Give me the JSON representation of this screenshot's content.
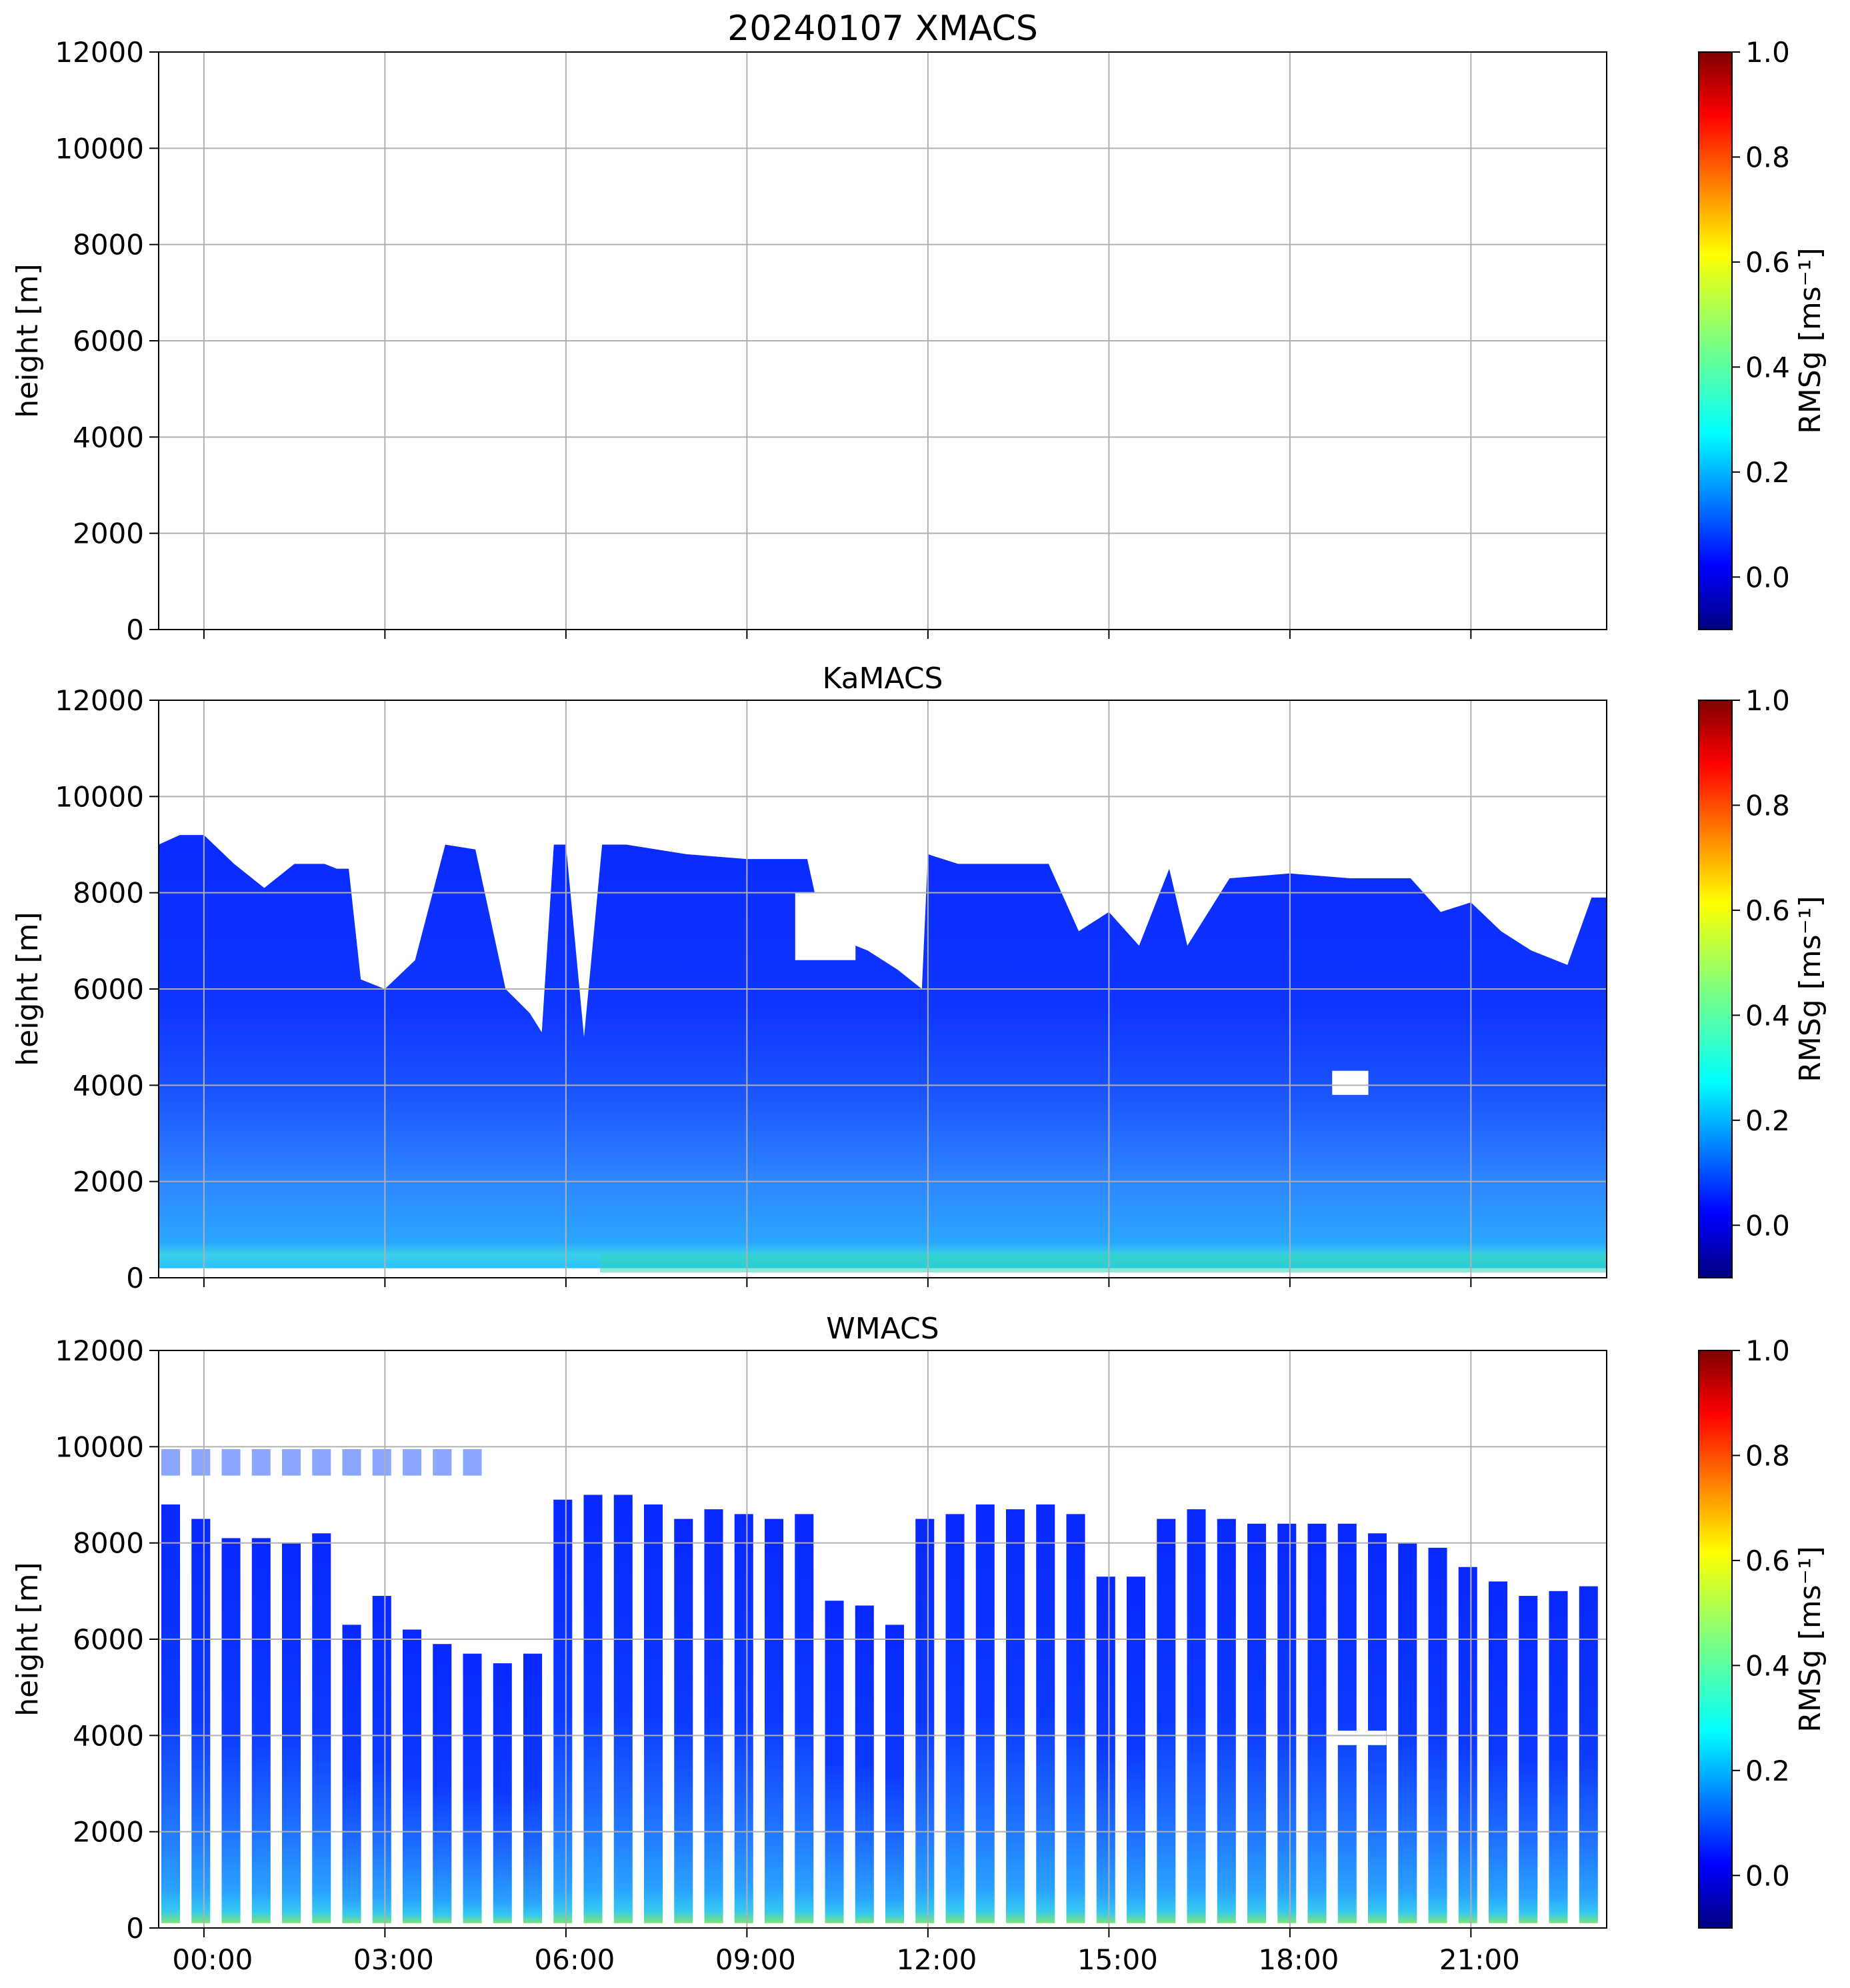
{
  "chart_data": [
    {
      "type": "heatmap",
      "title": "20240107 XMACS",
      "xlabel": "",
      "ylabel": "height [m]",
      "ylim": [
        0,
        12000
      ],
      "xlim_hours": [
        -0.75,
        23.25
      ],
      "x_tick_labels": [
        "00:00",
        "03:00",
        "06:00",
        "09:00",
        "12:00",
        "15:00",
        "18:00",
        "21:00"
      ],
      "y_ticks": [
        0,
        2000,
        4000,
        6000,
        8000,
        10000,
        12000
      ],
      "grid": true,
      "colorbar": {
        "label": "RMSg [ms⁻¹]",
        "range": [
          -0.1,
          1.0
        ],
        "ticks": [
          "0.0",
          "0.2",
          "0.4",
          "0.6",
          "0.8",
          "1.0"
        ],
        "colormap": "jet"
      },
      "has_data": false
    },
    {
      "type": "heatmap",
      "title": "KaMACS",
      "xlabel": "",
      "ylabel": "height [m]",
      "ylim": [
        0,
        12000
      ],
      "xlim_hours": [
        -0.75,
        23.25
      ],
      "x_tick_labels": [
        "00:00",
        "03:00",
        "06:00",
        "09:00",
        "12:00",
        "15:00",
        "18:00",
        "21:00"
      ],
      "y_ticks": [
        0,
        2000,
        4000,
        6000,
        8000,
        10000,
        12000
      ],
      "grid": true,
      "colorbar": {
        "label": "RMSg [ms⁻¹]",
        "range": [
          -0.1,
          1.0
        ],
        "ticks": [
          "0.0",
          "0.2",
          "0.4",
          "0.6",
          "0.8",
          "1.0"
        ],
        "colormap": "jet"
      },
      "has_data": true,
      "data_bottom_m": 200,
      "cloud_top": {
        "hours": [
          -0.75,
          -0.4,
          0.0,
          0.5,
          1.0,
          1.5,
          2.0,
          2.2,
          2.4,
          2.6,
          3.0,
          3.5,
          4.0,
          4.5,
          5.0,
          5.4,
          5.6,
          5.8,
          6.0,
          6.3,
          6.6,
          7.0,
          8.0,
          9.0,
          10.0,
          10.3,
          10.6,
          11.0,
          11.5,
          11.9,
          12.0,
          12.5,
          13.0,
          14.0,
          14.5,
          15.0,
          15.5,
          16.0,
          16.3,
          17.0,
          18.0,
          19.0,
          20.0,
          20.5,
          21.0,
          21.5,
          22.0,
          22.6,
          23.0,
          23.25
        ],
        "top_m": [
          9000,
          9200,
          9200,
          8600,
          8100,
          8600,
          8600,
          8500,
          8500,
          6200,
          6000,
          6600,
          9000,
          8900,
          6000,
          5500,
          5100,
          9000,
          9000,
          5000,
          9000,
          9000,
          8800,
          8700,
          8700,
          7000,
          7000,
          6800,
          6400,
          6000,
          8800,
          8600,
          8600,
          8600,
          7200,
          7600,
          6900,
          8500,
          6900,
          8300,
          8400,
          8300,
          8300,
          7600,
          7800,
          7200,
          6800,
          6500,
          7900,
          7900
        ]
      },
      "gaps": [
        {
          "hour_start": 9.8,
          "hour_end": 10.8,
          "bottom_m": 6600,
          "top_m": 8000
        },
        {
          "hour_start": 18.7,
          "hour_end": 19.3,
          "bottom_m": 3800,
          "top_m": 4300
        }
      ]
    },
    {
      "type": "heatmap",
      "title": "WMACS",
      "xlabel": "",
      "ylabel": "height [m]",
      "ylim": [
        0,
        12000
      ],
      "xlim_hours": [
        -0.75,
        23.25
      ],
      "x_tick_labels": [
        "00:00",
        "03:00",
        "06:00",
        "09:00",
        "12:00",
        "15:00",
        "18:00",
        "21:00"
      ],
      "y_ticks": [
        0,
        2000,
        4000,
        6000,
        8000,
        10000,
        12000
      ],
      "grid": true,
      "colorbar": {
        "label": "RMSg [ms⁻¹]",
        "range": [
          -0.1,
          1.0
        ],
        "ticks": [
          "0.0",
          "0.2",
          "0.4",
          "0.6",
          "0.8",
          "1.0"
        ],
        "colormap": "jet"
      },
      "has_data": true,
      "data_bottom_m": 100,
      "stripes": [
        {
          "hour": -0.75,
          "top_m": 8800
        },
        {
          "hour": -0.25,
          "top_m": 8500
        },
        {
          "hour": 0.25,
          "top_m": 8100
        },
        {
          "hour": 0.75,
          "top_m": 8100
        },
        {
          "hour": 1.25,
          "top_m": 8000
        },
        {
          "hour": 1.75,
          "top_m": 8200
        },
        {
          "hour": 2.25,
          "top_m": 6300
        },
        {
          "hour": 2.75,
          "top_m": 6900
        },
        {
          "hour": 3.25,
          "top_m": 6200
        },
        {
          "hour": 3.75,
          "top_m": 5900
        },
        {
          "hour": 4.25,
          "top_m": 5700
        },
        {
          "hour": 4.75,
          "top_m": 5500
        },
        {
          "hour": 5.25,
          "top_m": 5700
        },
        {
          "hour": 5.75,
          "top_m": 8900
        },
        {
          "hour": 6.25,
          "top_m": 9000
        },
        {
          "hour": 6.75,
          "top_m": 9000
        },
        {
          "hour": 7.25,
          "top_m": 8800
        },
        {
          "hour": 7.75,
          "top_m": 8500
        },
        {
          "hour": 8.25,
          "top_m": 8700
        },
        {
          "hour": 8.75,
          "top_m": 8600
        },
        {
          "hour": 9.25,
          "top_m": 8500
        },
        {
          "hour": 9.75,
          "top_m": 8600
        },
        {
          "hour": 10.25,
          "top_m": 6800
        },
        {
          "hour": 10.75,
          "top_m": 6700
        },
        {
          "hour": 11.25,
          "top_m": 6300
        },
        {
          "hour": 11.75,
          "top_m": 8500
        },
        {
          "hour": 12.25,
          "top_m": 8600
        },
        {
          "hour": 12.75,
          "top_m": 8800
        },
        {
          "hour": 13.25,
          "top_m": 8700
        },
        {
          "hour": 13.75,
          "top_m": 8800
        },
        {
          "hour": 14.25,
          "top_m": 8600
        },
        {
          "hour": 14.75,
          "top_m": 7300
        },
        {
          "hour": 15.25,
          "top_m": 7300
        },
        {
          "hour": 15.75,
          "top_m": 8500
        },
        {
          "hour": 16.25,
          "top_m": 8700
        },
        {
          "hour": 16.75,
          "top_m": 8500
        },
        {
          "hour": 17.25,
          "top_m": 8400
        },
        {
          "hour": 17.75,
          "top_m": 8400
        },
        {
          "hour": 18.25,
          "top_m": 8400
        },
        {
          "hour": 18.75,
          "top_m": 8400
        },
        {
          "hour": 19.25,
          "top_m": 8200
        },
        {
          "hour": 19.75,
          "top_m": 8000
        },
        {
          "hour": 20.25,
          "top_m": 7900
        },
        {
          "hour": 20.75,
          "top_m": 7500
        },
        {
          "hour": 21.25,
          "top_m": 7200
        },
        {
          "hour": 21.75,
          "top_m": 6900
        },
        {
          "hour": 22.25,
          "top_m": 7000
        },
        {
          "hour": 22.75,
          "top_m": 7100
        }
      ],
      "upper_layer": {
        "hour_start": -0.75,
        "hour_end": 4.25,
        "bottom_m": 9400,
        "top_m": 9950
      },
      "gaps": [
        {
          "hour_start": 18.7,
          "hour_end": 19.6,
          "bottom_m": 3800,
          "top_m": 4100
        }
      ]
    }
  ]
}
